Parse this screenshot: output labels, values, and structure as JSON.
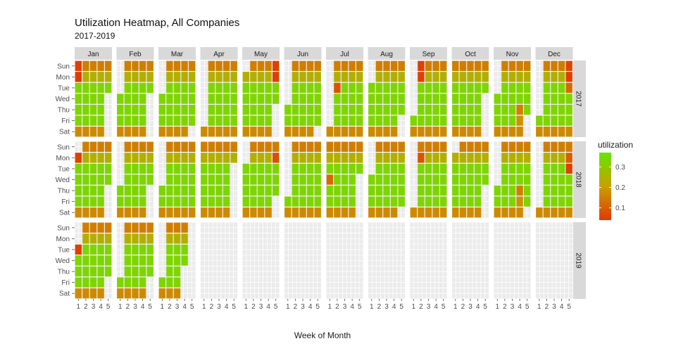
{
  "chart_data": {
    "type": "heatmap",
    "title": "Utilization Heatmap, All Companies",
    "subtitle": "2017-2019",
    "xlabel": "Week of Month",
    "ylabel": "",
    "months": [
      "Jan",
      "Feb",
      "Mar",
      "Apr",
      "May",
      "Jun",
      "Jul",
      "Aug",
      "Sep",
      "Oct",
      "Nov",
      "Dec"
    ],
    "years": [
      "2017",
      "2018",
      "2019"
    ],
    "weekdays": [
      "Sun",
      "Mon",
      "Tue",
      "Wed",
      "Thu",
      "Fri",
      "Sat"
    ],
    "week_ticks": [
      "1",
      "2",
      "3",
      "4",
      "5"
    ],
    "legend": {
      "title": "utilization",
      "ticks": [
        "0.3",
        "0.2",
        "0.1"
      ],
      "tick_values": [
        0.3,
        0.2,
        0.1
      ],
      "range": [
        0.04,
        0.37
      ],
      "colors": [
        "#e03a00",
        "#c8a000",
        "#66e600"
      ]
    },
    "default_values": {
      "weekday": 0.33,
      "Sun": 0.15,
      "Mon": 0.24,
      "Sat": 0.17
    },
    "panels": {
      "2017": {
        "Jan": {
          "first_dow": 0,
          "days": 31
        },
        "Feb": {
          "first_dow": 3,
          "days": 28
        },
        "Mar": {
          "first_dow": 3,
          "days": 31
        },
        "Apr": {
          "first_dow": 6,
          "days": 30
        },
        "May": {
          "first_dow": 1,
          "days": 31
        },
        "Jun": {
          "first_dow": 4,
          "days": 30
        },
        "Jul": {
          "first_dow": 6,
          "days": 31
        },
        "Aug": {
          "first_dow": 2,
          "days": 31
        },
        "Sep": {
          "first_dow": 5,
          "days": 30
        },
        "Oct": {
          "first_dow": 0,
          "days": 31
        },
        "Nov": {
          "first_dow": 3,
          "days": 30
        },
        "Dec": {
          "first_dow": 5,
          "days": 31
        }
      },
      "2018": {
        "Jan": {
          "first_dow": 1,
          "days": 31
        },
        "Feb": {
          "first_dow": 4,
          "days": 28
        },
        "Mar": {
          "first_dow": 4,
          "days": 31
        },
        "Apr": {
          "first_dow": 0,
          "days": 30
        },
        "May": {
          "first_dow": 2,
          "days": 31
        },
        "Jun": {
          "first_dow": 5,
          "days": 30
        },
        "Jul": {
          "first_dow": 0,
          "days": 31
        },
        "Aug": {
          "first_dow": 3,
          "days": 31
        },
        "Sep": {
          "first_dow": 6,
          "days": 30
        },
        "Oct": {
          "first_dow": 1,
          "days": 31
        },
        "Nov": {
          "first_dow": 4,
          "days": 30
        },
        "Dec": {
          "first_dow": 6,
          "days": 31
        }
      },
      "2019": {
        "Jan": {
          "first_dow": 2,
          "days": 31
        },
        "Feb": {
          "first_dow": 5,
          "days": 28
        },
        "Mar": {
          "first_dow": 5,
          "days": 20
        }
      }
    },
    "overrides": [
      {
        "year": "2017",
        "month": "Jan",
        "day": 1,
        "value": 0.05
      },
      {
        "year": "2017",
        "month": "Jan",
        "day": 2,
        "value": 0.04
      },
      {
        "year": "2017",
        "month": "May",
        "day": 28,
        "value": 0.05
      },
      {
        "year": "2017",
        "month": "May",
        "day": 29,
        "value": 0.05
      },
      {
        "year": "2017",
        "month": "Jul",
        "day": 4,
        "value": 0.08
      },
      {
        "year": "2017",
        "month": "Sep",
        "day": 3,
        "value": 0.05
      },
      {
        "year": "2017",
        "month": "Sep",
        "day": 4,
        "value": 0.05
      },
      {
        "year": "2017",
        "month": "Nov",
        "day": 23,
        "value": 0.15
      },
      {
        "year": "2017",
        "month": "Nov",
        "day": 24,
        "value": 0.18
      },
      {
        "year": "2017",
        "month": "Dec",
        "day": 24,
        "value": 0.06
      },
      {
        "year": "2017",
        "month": "Dec",
        "day": 25,
        "value": 0.05
      },
      {
        "year": "2017",
        "month": "Dec",
        "day": 26,
        "value": 0.12
      },
      {
        "year": "2018",
        "month": "Jan",
        "day": 1,
        "value": 0.05
      },
      {
        "year": "2018",
        "month": "May",
        "day": 28,
        "value": 0.07
      },
      {
        "year": "2018",
        "month": "Jul",
        "day": 4,
        "value": 0.12
      },
      {
        "year": "2018",
        "month": "Sep",
        "day": 3,
        "value": 0.08
      },
      {
        "year": "2018",
        "month": "Nov",
        "day": 22,
        "value": 0.15
      },
      {
        "year": "2018",
        "month": "Nov",
        "day": 23,
        "value": 0.18
      },
      {
        "year": "2018",
        "month": "Dec",
        "day": 24,
        "value": 0.1
      },
      {
        "year": "2018",
        "month": "Dec",
        "day": 25,
        "value": 0.05
      },
      {
        "year": "2019",
        "month": "Jan",
        "day": 1,
        "value": 0.05
      }
    ]
  }
}
